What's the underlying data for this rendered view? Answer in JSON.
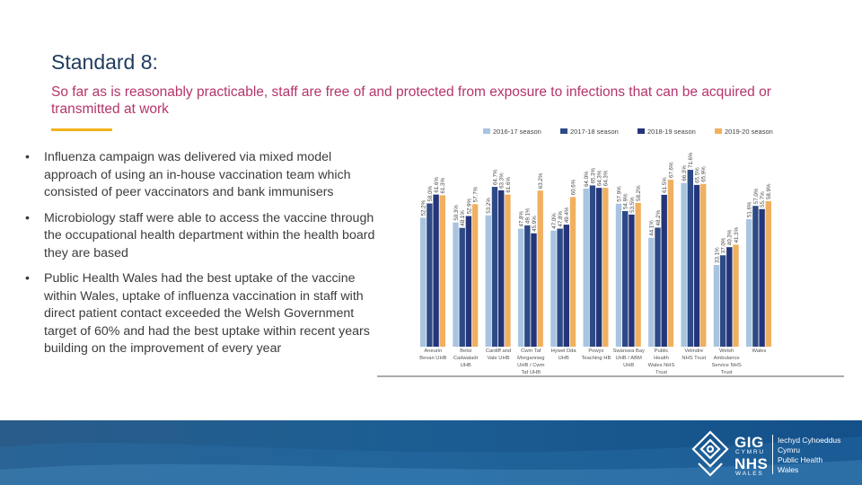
{
  "slide": {
    "title": "Standard 8:",
    "subtitle": "So far as is reasonably practicable, staff are free of and protected from exposure to infections that can be acquired or transmitted at work",
    "bullets": [
      "Influenza campaign was delivered via  mixed model approach of using an in-house vaccination team which consisted of peer vaccinators and bank immunisers",
      "Microbiology staff were able to access the vaccine through the occupational health department within the health board they are based",
      "Public Health Wales had the best uptake of the vaccine within Wales, uptake of influenza vaccination in staff with direct patient contact exceeded the Welsh Government target of 60% and had the best uptake within recent years building on the improvement of every year"
    ],
    "bullet_symbol": "•"
  },
  "chart_data": {
    "type": "bar",
    "categories": [
      "Aneurin Bevan UHB",
      "Betsi Cadwaladr UHB",
      "Cardiff and Vale UHB",
      "Cwm Taf Morgannwg UHB / Cwm Taf UHB",
      "Hywel Dda UHB",
      "Powys Teaching HB",
      "Swansea Bay UHB / ABM UHB",
      "Public Health Wales NHS Trust",
      "Velindre NHS Trust",
      "Welsh Ambulance Service NHS Trust",
      "Wales"
    ],
    "series": [
      {
        "name": "2016-17 season",
        "color": "#a8c4e0",
        "values": [
          52.2,
          50.3,
          53.2,
          47.8,
          47.0,
          64.0,
          57.9,
          44.1,
          66.3,
          33.1,
          51.6
        ]
      },
      {
        "name": "2017-18 season",
        "color": "#2e4a86",
        "values": [
          58.0,
          48.1,
          64.7,
          49.1,
          47.8,
          65.3,
          54.9,
          48.2,
          71.6,
          37.0,
          57.0
        ]
      },
      {
        "name": "2018-19 season",
        "color": "#24357a",
        "values": [
          61.6,
          52.9,
          63.3,
          45.9,
          49.4,
          64.3,
          53.5,
          61.5,
          65.5,
          40.3,
          55.7
        ]
      },
      {
        "name": "2019-20 season",
        "color": "#f0b060",
        "values": [
          61.3,
          57.7,
          61.6,
          63.2,
          60.6,
          64.3,
          58.2,
          67.6,
          65.9,
          41.3,
          58.9
        ]
      }
    ],
    "data_labels": [
      [
        "52.2%",
        "58.0%",
        "61.6%",
        "61.3%"
      ],
      [
        "50.3%",
        "48.1%",
        "52.9%",
        "57.7%"
      ],
      [
        "53.2%",
        "64.7%",
        "63.3%",
        "61.6%"
      ],
      [
        "47.8%",
        "49.1%",
        "45.9%",
        "63.2%"
      ],
      [
        "47.0%",
        "47.8%",
        "49.4%",
        "60.6%"
      ],
      [
        "64.0%",
        "65.3%",
        "64.3%",
        "64.3%"
      ],
      [
        "57.9%",
        "54.9%",
        "53.5%",
        "58.2%"
      ],
      [
        "44.1%",
        "48.2%",
        "61.5%",
        "67.6%"
      ],
      [
        "66.3%",
        "71.6%",
        "65.5%",
        "65.9%"
      ],
      [
        "33.1%",
        "37.0%",
        "40.3%",
        "41.3%"
      ],
      [
        "51.6%",
        "57.0%",
        "55.7%",
        "58.9%"
      ]
    ],
    "category_label_lines": [
      [
        "Aneurin",
        "Bevan UHB"
      ],
      [
        "Betsi",
        "Cadwaladr",
        "UHB"
      ],
      [
        "Cardiff and",
        "Vale UHB"
      ],
      [
        "Cwm Taf",
        "Morgannwg",
        "UHB / Cwm",
        "Taf UHB"
      ],
      [
        "Hywel Dda",
        "UHB"
      ],
      [
        "Powys",
        "Teaching HB"
      ],
      [
        "Swansea Bay",
        "UHB / ABM",
        "UHB"
      ],
      [
        "Public",
        "Health",
        "Wales NHS",
        "Trust"
      ],
      [
        "Velindre",
        "NHS Trust"
      ],
      [
        "Welsh",
        "Ambulance",
        "Service NHS",
        "Trust"
      ],
      [
        "Wales"
      ]
    ],
    "legend_position": "top",
    "grid": false,
    "ylim": [
      0,
      80
    ]
  },
  "footer": {
    "logo": {
      "mark_icon": "nhs-wales-knot-icon",
      "gig": "GIG",
      "cymru": "CYMRU",
      "nhs": "NHS",
      "wales": "WALES",
      "org_lines": [
        "Iechyd Cyhoeddus",
        "Cymru",
        "Public Health",
        "Wales"
      ]
    }
  }
}
